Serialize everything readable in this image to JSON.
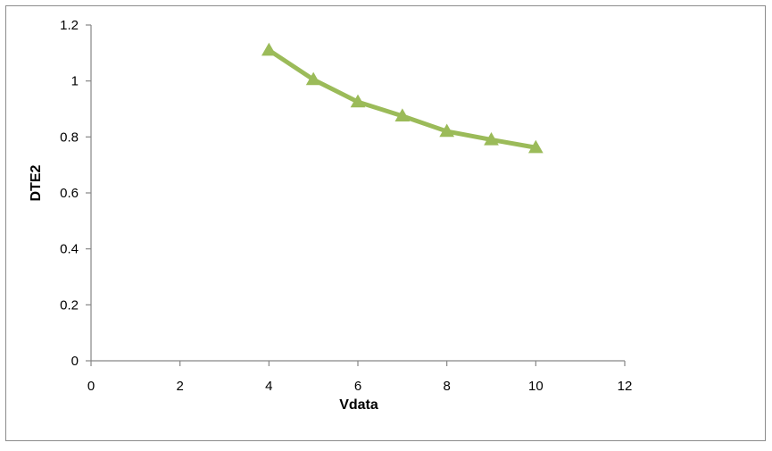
{
  "chart_data": {
    "type": "line",
    "xlabel": "Vdata",
    "ylabel": "DTE2",
    "xlim": [
      0,
      12
    ],
    "ylim": [
      0,
      1.2
    ],
    "xticks": [
      0,
      2,
      4,
      6,
      8,
      10,
      12
    ],
    "yticks": [
      0,
      0.2,
      0.4,
      0.6,
      0.8,
      1,
      1.2
    ],
    "xtick_labels": [
      "0",
      "2",
      "4",
      "6",
      "8",
      "10",
      "12"
    ],
    "ytick_labels": [
      "0",
      "0.2",
      "0.4",
      "0.6",
      "0.8",
      "1",
      "1.2"
    ],
    "grid": false,
    "legend": "none",
    "series": [
      {
        "color": "#9bbb59",
        "marker": "triangle",
        "x": [
          4,
          5,
          6,
          7,
          8,
          9,
          10
        ],
        "y": [
          1.11,
          1.005,
          0.925,
          0.875,
          0.82,
          0.79,
          0.762
        ]
      }
    ]
  }
}
